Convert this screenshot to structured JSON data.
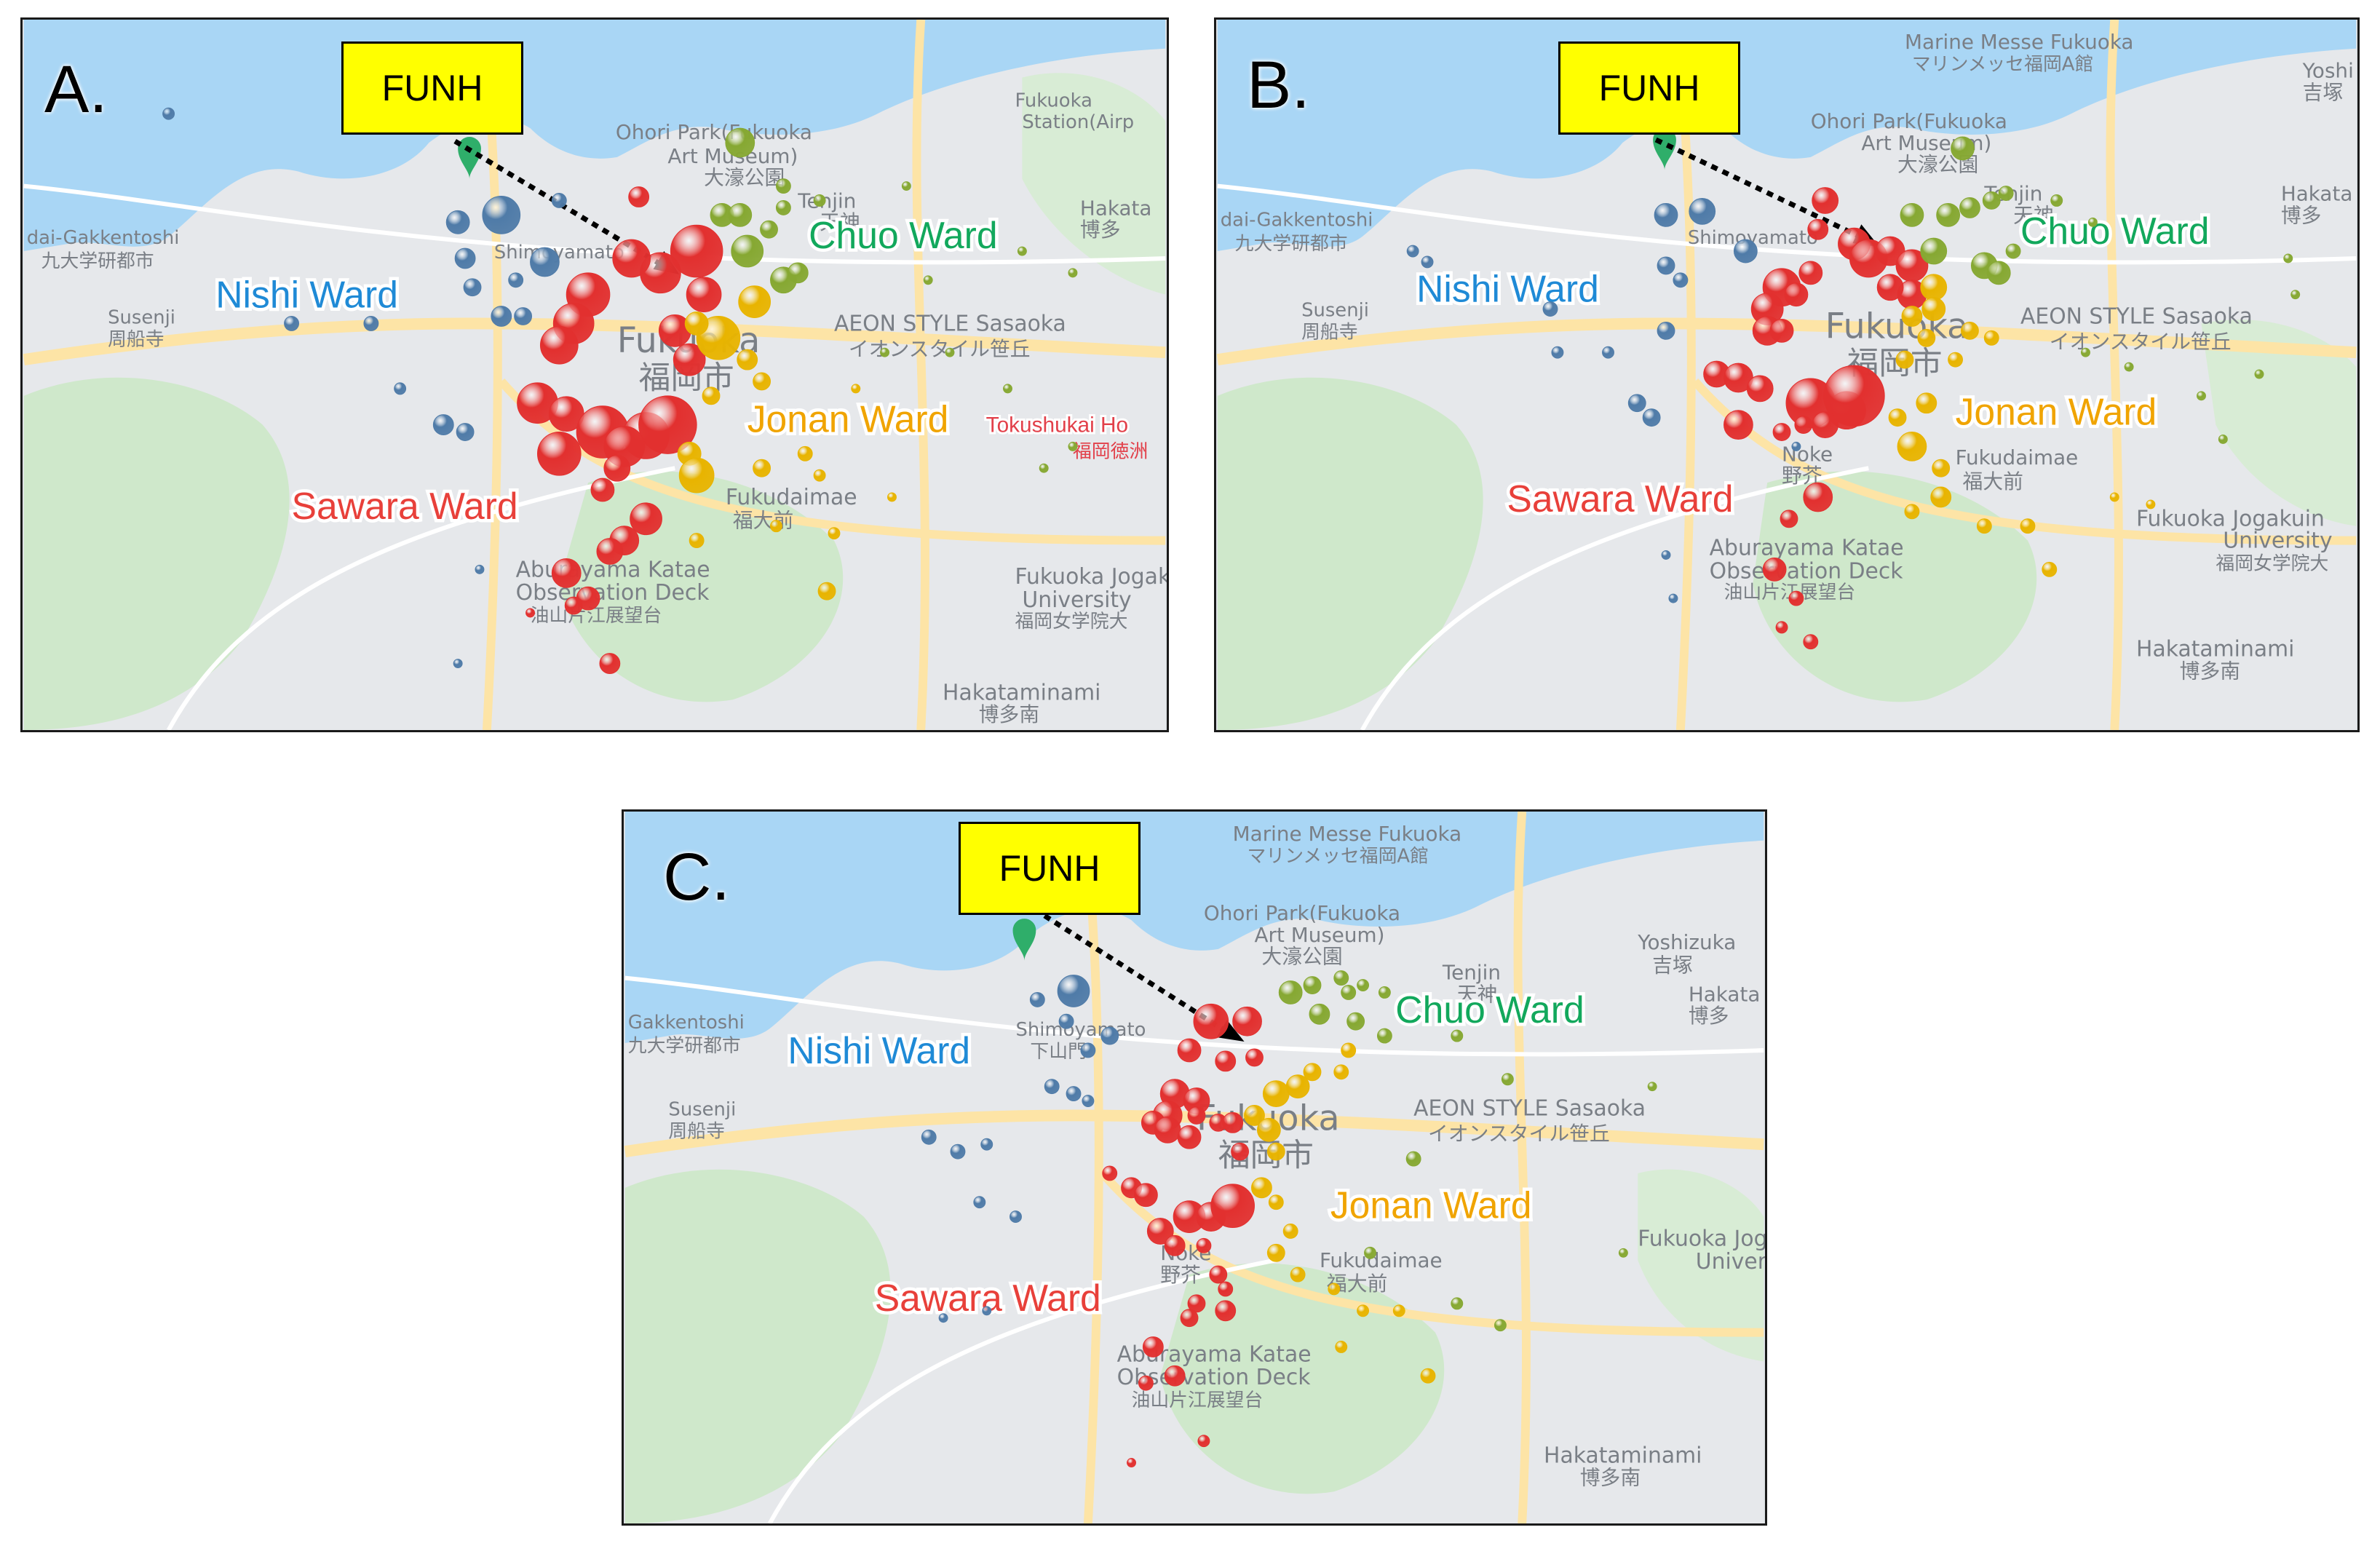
{
  "panels": [
    {
      "letter": "A.",
      "funh_label": "FUNH",
      "wards": {
        "nishi": "Nishi Ward",
        "chuo": "Chuo Ward",
        "jonan": "Jonan Ward",
        "sawara": "Sawara Ward"
      },
      "places": [
        "Ohori Park(Fukuoka",
        "Art Museum)",
        "Fukuoka",
        "Station(Airp",
        "Hakata",
        "博多",
        "dai-Gakkentoshi",
        "九大学研都市",
        "Shimoyamato",
        "Susenji",
        "周船寺",
        "Tenjin",
        "天神",
        "AEON STYLE Sasaoka",
        "イオンスタイル笹丘",
        "Fukuoka",
        "福岡市",
        "Tokushukai Ho",
        "福岡徳洲",
        "Fukudaimae",
        "福大前",
        "Fukuoka Jogakuin",
        "University",
        "福岡女学院大",
        "Aburayama Katae",
        "Observation Deck",
        "油山片江展望台",
        "Hakataminami",
        "博多南",
        "大濠公園"
      ]
    },
    {
      "letter": "B.",
      "funh_label": "FUNH",
      "wards": {
        "nishi": "Nishi Ward",
        "chuo": "Chuo Ward",
        "jonan": "Jonan Ward",
        "sawara": "Sawara Ward"
      },
      "places": [
        "Marine Messe Fukuoka",
        "マリンメッセ福岡A館",
        "Ohori Park(Fukuoka",
        "Art Museum)",
        "Yoshi",
        "吉塚",
        "Hakata",
        "博多",
        "dai-Gakkentoshi",
        "九大学研都市",
        "Shimoyamato",
        "Susenji",
        "周船寺",
        "Tenjin",
        "天神",
        "AEON STYLE Sasaoka",
        "イオンスタイル笹丘",
        "Fukuoka",
        "福岡市",
        "Fukudaimae",
        "福大前",
        "Noke",
        "野芥",
        "Fukuoka Jogakuin",
        "University",
        "福岡女学院大",
        "Aburayama Katae",
        "Observation Deck",
        "油山片江展望台",
        "Hakataminami",
        "博多南",
        "大濠公園"
      ]
    },
    {
      "letter": "C.",
      "funh_label": "FUNH",
      "wards": {
        "nishi": "Nishi Ward",
        "chuo": "Chuo Ward",
        "jonan": "Jonan Ward",
        "sawara": "Sawara Ward"
      },
      "places": [
        "Marine Messe Fukuoka",
        "マリンメッセ福岡A館",
        "Ohori Park(Fukuoka",
        "Art Museum)",
        "Yoshizuka",
        "吉塚",
        "Hakata",
        "博多",
        "Gakkentoshi",
        "九大学研都市",
        "Shimoyamato",
        "下山門",
        "Susenji",
        "周船寺",
        "Tenjin",
        "天神",
        "AEON STYLE Sasaoka",
        "イオンスタイル笹丘",
        "Fukuoka",
        "福岡市",
        "Fukudaimae",
        "福大前",
        "Noke",
        "野芥",
        "Fukuoka Jogak",
        "Univers",
        "Aburayama Katae",
        "Observation Deck",
        "油山片江展望台",
        "Hakataminami",
        "博多南",
        "大濠公園"
      ]
    }
  ],
  "colors": {
    "nishi": "#4f7ba8",
    "chuo": "#86a832",
    "jonan": "#e8b400",
    "sawara": "#e2302f",
    "nishi_text": "#1f8ad6",
    "chuo_text": "#12a85c",
    "jonan_text": "#f0a400",
    "sawara_text": "#e8403a",
    "water": "#a9d6f5",
    "land": "#e6e8eb",
    "green": "#cfe8cb",
    "road": "#fde4a6",
    "funh_box": "#ffff00"
  }
}
